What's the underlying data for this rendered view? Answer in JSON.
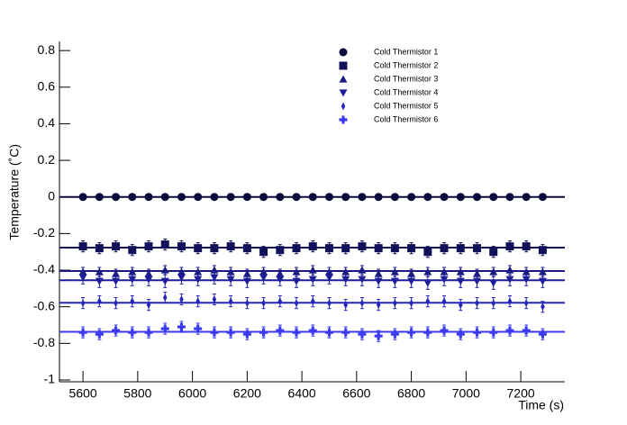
{
  "chart_data": {
    "type": "scatter",
    "x_label": "Time (s)",
    "y_label": "Temperature (˚C)",
    "xlim": [
      5514,
      7361
    ],
    "ylim": [
      -1.01,
      0.85
    ],
    "xticks": [
      5600,
      5800,
      6000,
      6200,
      6400,
      6600,
      6800,
      7000,
      7200
    ],
    "yticks": [
      -1,
      -0.8,
      -0.6,
      -0.4,
      -0.2,
      0,
      0.2,
      0.4,
      0.6,
      0.8
    ],
    "x": [
      5600,
      5660,
      5720,
      5780,
      5840,
      5900,
      5960,
      6020,
      6080,
      6140,
      6200,
      6260,
      6320,
      6380,
      6440,
      6500,
      6560,
      6620,
      6680,
      6740,
      6800,
      6860,
      6920,
      6980,
      7040,
      7100,
      7160,
      7220,
      7280
    ],
    "series": [
      {
        "name": "Cold Thermistor 1",
        "color": "#0a0a3c",
        "marker": "circle",
        "error": 0.005,
        "fit": 0,
        "values": [
          0,
          0,
          0,
          0,
          0,
          0,
          0,
          0,
          0,
          0,
          0,
          0,
          0,
          0,
          0,
          0,
          0,
          0,
          0,
          0,
          0,
          0,
          0,
          0,
          0,
          0,
          0,
          0,
          0
        ]
      },
      {
        "name": "Cold Thermistor 2",
        "color": "#12125a",
        "marker": "square",
        "error": 0.03,
        "fit": -0.277,
        "values": [
          -0.27,
          -0.28,
          -0.27,
          -0.29,
          -0.27,
          -0.26,
          -0.27,
          -0.28,
          -0.28,
          -0.27,
          -0.28,
          -0.3,
          -0.29,
          -0.28,
          -0.27,
          -0.28,
          -0.28,
          -0.27,
          -0.28,
          -0.28,
          -0.28,
          -0.3,
          -0.28,
          -0.28,
          -0.28,
          -0.3,
          -0.27,
          -0.27,
          -0.29
        ]
      },
      {
        "name": "Cold Thermistor 3",
        "color": "#1a1a80",
        "marker": "triangle-up",
        "error": 0.025,
        "fit": -0.405,
        "values": [
          -0.41,
          -0.41,
          -0.42,
          -0.41,
          -0.42,
          -0.4,
          -0.41,
          -0.41,
          -0.4,
          -0.41,
          -0.42,
          -0.41,
          -0.42,
          -0.41,
          -0.4,
          -0.41,
          -0.41,
          -0.4,
          -0.42,
          -0.41,
          -0.42,
          -0.41,
          -0.41,
          -0.41,
          -0.42,
          -0.41,
          -0.4,
          -0.41,
          -0.41
        ]
      },
      {
        "name": "Cold Thermistor 4",
        "color": "#1e1e9a",
        "marker": "triangle-down",
        "error": 0.035,
        "fit": -0.455,
        "values": [
          -0.44,
          -0.46,
          -0.46,
          -0.45,
          -0.45,
          -0.46,
          -0.44,
          -0.45,
          -0.44,
          -0.45,
          -0.46,
          -0.44,
          -0.45,
          -0.46,
          -0.45,
          -0.44,
          -0.45,
          -0.45,
          -0.46,
          -0.46,
          -0.46,
          -0.47,
          -0.45,
          -0.46,
          -0.46,
          -0.47,
          -0.45,
          -0.45,
          -0.46
        ]
      },
      {
        "name": "Cold Thermistor 5",
        "color": "#2626bc",
        "marker": "diamond",
        "error": 0.03,
        "fit": -0.578,
        "values": [
          -0.58,
          -0.57,
          -0.58,
          -0.57,
          -0.59,
          -0.55,
          -0.56,
          -0.57,
          -0.56,
          -0.57,
          -0.58,
          -0.58,
          -0.57,
          -0.58,
          -0.57,
          -0.58,
          -0.59,
          -0.58,
          -0.59,
          -0.58,
          -0.58,
          -0.57,
          -0.57,
          -0.59,
          -0.58,
          -0.58,
          -0.57,
          -0.58,
          -0.6
        ]
      },
      {
        "name": "Cold Thermistor 6",
        "color": "#3a3af0",
        "marker": "cross",
        "error": 0.03,
        "fit": -0.737,
        "values": [
          -0.74,
          -0.75,
          -0.73,
          -0.74,
          -0.74,
          -0.72,
          -0.71,
          -0.72,
          -0.74,
          -0.74,
          -0.75,
          -0.74,
          -0.73,
          -0.74,
          -0.73,
          -0.74,
          -0.74,
          -0.75,
          -0.76,
          -0.75,
          -0.74,
          -0.74,
          -0.73,
          -0.75,
          -0.74,
          -0.74,
          -0.73,
          -0.73,
          -0.75
        ]
      }
    ]
  }
}
